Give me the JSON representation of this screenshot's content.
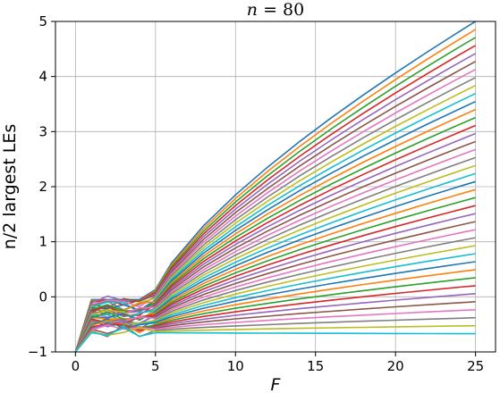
{
  "chart_data": {
    "type": "line",
    "title_var": "n",
    "title_eq": " = 80",
    "xlabel": "F",
    "ylabel": "n/2 largest LEs",
    "xlim": [
      -1.25,
      26.25
    ],
    "ylim": [
      -1,
      5
    ],
    "x_ticks": [
      0,
      5,
      10,
      15,
      20,
      25
    ],
    "y_ticks": [
      -1,
      0,
      1,
      2,
      3,
      4,
      5
    ],
    "grid": true,
    "legend": "none",
    "series_count": 40,
    "series_description": "Lyapunov exponents vs F: chaotic-regime top values at F = 25 roughly evenly spaced from 5.0 down to -0.67; all start at -1 at F = 0, then F = 1 to 4.5 region near 0 to -0.8",
    "x": [
      0,
      1,
      2,
      3,
      4,
      5,
      6,
      8,
      10,
      12,
      14,
      16,
      18,
      20,
      22,
      24,
      25
    ],
    "top_at_25": 5.0,
    "bottom_at_25": -0.67,
    "bottom_plateau": -0.7,
    "palette": [
      "#1f77b4",
      "#ff7f0e",
      "#2ca02c",
      "#d62728",
      "#9467bd",
      "#8c564b",
      "#e377c2",
      "#7f7f7f",
      "#bcbd22",
      "#17becf"
    ]
  }
}
